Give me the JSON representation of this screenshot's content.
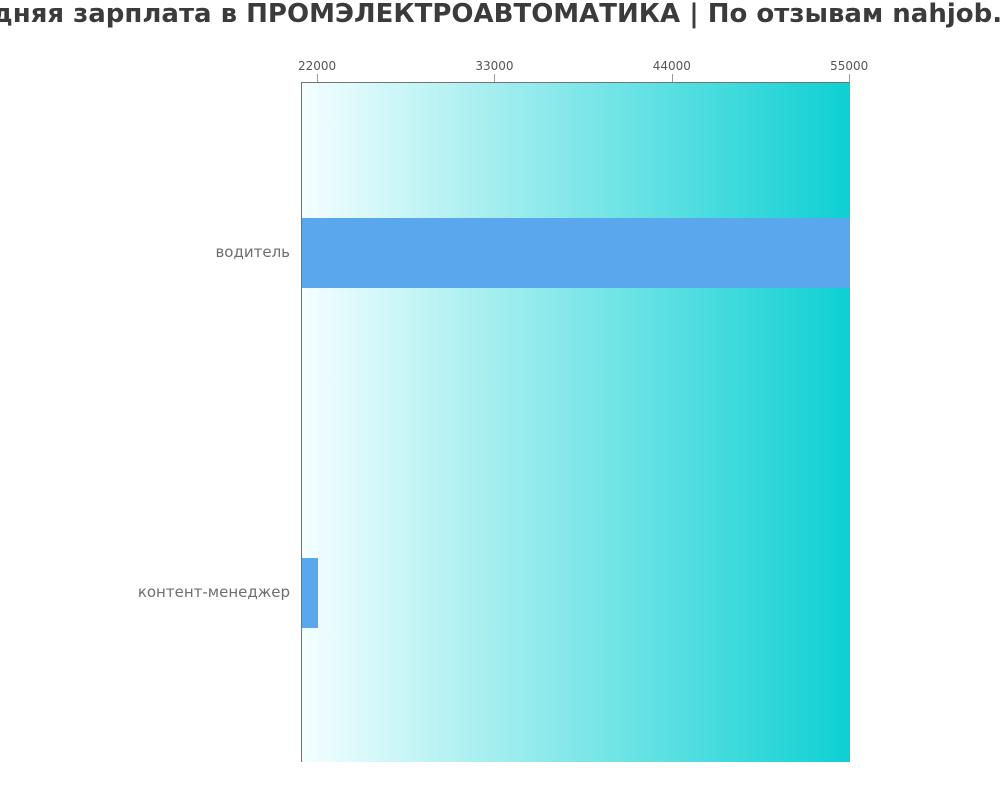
{
  "title": "Средняя зарплата в ПРОМЭЛЕКТРОАВТОМАТИКА | По отзывам nahjob.club",
  "chart_data": {
    "type": "bar",
    "orientation": "horizontal",
    "title": "Средняя зарплата в ПРОМЭЛЕКТРОАВТОМАТИКА | По отзывам nahjob.club",
    "categories": [
      "водитель",
      "контент-менеджер"
    ],
    "values": [
      55000,
      22000
    ],
    "x_ticks": [
      22000,
      33000,
      44000,
      55000
    ],
    "x_tick_labels": [
      "22000",
      "33000",
      "44000",
      "55000"
    ],
    "xlim": [
      21000,
      55050
    ],
    "legend": null,
    "grid": false,
    "colors": {
      "bar": "#5aa7ee",
      "plot_gradient_left": "#f4feff",
      "plot_gradient_right": "#0ed0d3",
      "title_text": "#3b3b3b",
      "tick_text": "#565656",
      "category_text": "#6e6e6e",
      "axis_line": "#737373",
      "tick_mark": "#9a9a9a"
    }
  }
}
